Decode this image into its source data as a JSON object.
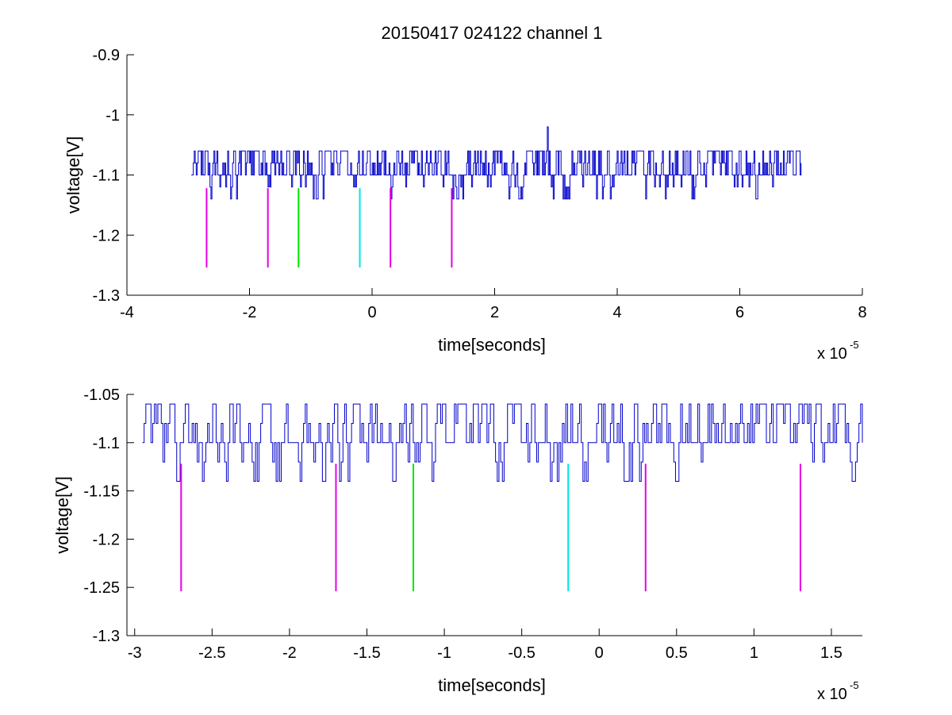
{
  "figure": {
    "title": "20150417 024122 channel 1"
  },
  "chart_data": [
    {
      "type": "line",
      "title": "20150417 024122 channel 1",
      "xlabel": "time[seconds]",
      "ylabel": "voltage[V]",
      "xlim": [
        -4,
        8
      ],
      "ylim": [
        -1.3,
        -0.9
      ],
      "x_multiplier_label": "x 10",
      "x_multiplier_exp": "-5",
      "x_scale": 1e-05,
      "grid": false,
      "xticks": [
        -4,
        -2,
        0,
        2,
        4,
        6,
        8
      ],
      "xtick_labels": [
        "-4",
        "-2",
        "0",
        "2",
        "4",
        "6",
        "8"
      ],
      "yticks": [
        -1.3,
        -1.2,
        -1.1,
        -1.0,
        -0.9
      ],
      "ytick_labels": [
        "-1.3",
        "-1.2",
        "-1.1",
        "-1",
        "-0.9"
      ],
      "series": [
        {
          "color": "#0000cc",
          "signal": {
            "x_start": -2.95,
            "x_end": 7.0,
            "baseline": -1.1,
            "levels": [
              -1.14,
              -1.12,
              -1.1,
              -1.08,
              -1.06
            ],
            "spike": {
              "x": 2.86,
              "y": -1.02
            }
          }
        }
      ],
      "markers": [
        {
          "x": -2.7,
          "y_top": -1.122,
          "y_bottom": -1.254,
          "color": "#e600e6"
        },
        {
          "x": -1.7,
          "y_top": -1.122,
          "y_bottom": -1.254,
          "color": "#e600e6"
        },
        {
          "x": -1.2,
          "y_top": -1.122,
          "y_bottom": -1.254,
          "color": "#00e600"
        },
        {
          "x": -0.2,
          "y_top": -1.122,
          "y_bottom": -1.254,
          "color": "#00e6e6"
        },
        {
          "x": 0.3,
          "y_top": -1.122,
          "y_bottom": -1.254,
          "color": "#e600e6"
        },
        {
          "x": 1.3,
          "y_top": -1.122,
          "y_bottom": -1.254,
          "color": "#e600e6"
        }
      ]
    },
    {
      "type": "line",
      "title": "",
      "xlabel": "time[seconds]",
      "ylabel": "voltage[V]",
      "xlim": [
        -3.05,
        1.7
      ],
      "ylim": [
        -1.3,
        -1.05
      ],
      "x_multiplier_label": "x 10",
      "x_multiplier_exp": "-5",
      "x_scale": 1e-05,
      "grid": false,
      "xticks": [
        -3,
        -2.5,
        -2,
        -1.5,
        -1,
        -0.5,
        0,
        0.5,
        1,
        1.5
      ],
      "xtick_labels": [
        "-3",
        "-2.5",
        "-2",
        "-1.5",
        "-1",
        "-0.5",
        "0",
        "0.5",
        "1",
        "1.5"
      ],
      "yticks": [
        -1.3,
        -1.25,
        -1.2,
        -1.15,
        -1.1,
        -1.05
      ],
      "ytick_labels": [
        "-1.3",
        "-1.25",
        "-1.2",
        "-1.15",
        "-1.1",
        "-1.05"
      ],
      "series": [
        {
          "color": "#0000cc",
          "signal": {
            "x_start": -2.95,
            "x_end": 1.7,
            "baseline": -1.1,
            "levels": [
              -1.14,
              -1.12,
              -1.1,
              -1.08,
              -1.06
            ],
            "spike": null
          }
        }
      ],
      "markers": [
        {
          "x": -2.7,
          "y_top": -1.122,
          "y_bottom": -1.254,
          "color": "#e600e6"
        },
        {
          "x": -1.7,
          "y_top": -1.122,
          "y_bottom": -1.254,
          "color": "#e600e6"
        },
        {
          "x": -1.2,
          "y_top": -1.122,
          "y_bottom": -1.254,
          "color": "#00e600"
        },
        {
          "x": -0.2,
          "y_top": -1.122,
          "y_bottom": -1.254,
          "color": "#00e6e6"
        },
        {
          "x": 0.3,
          "y_top": -1.122,
          "y_bottom": -1.254,
          "color": "#e600e6"
        },
        {
          "x": 1.3,
          "y_top": -1.122,
          "y_bottom": -1.254,
          "color": "#e600e6"
        }
      ]
    }
  ]
}
